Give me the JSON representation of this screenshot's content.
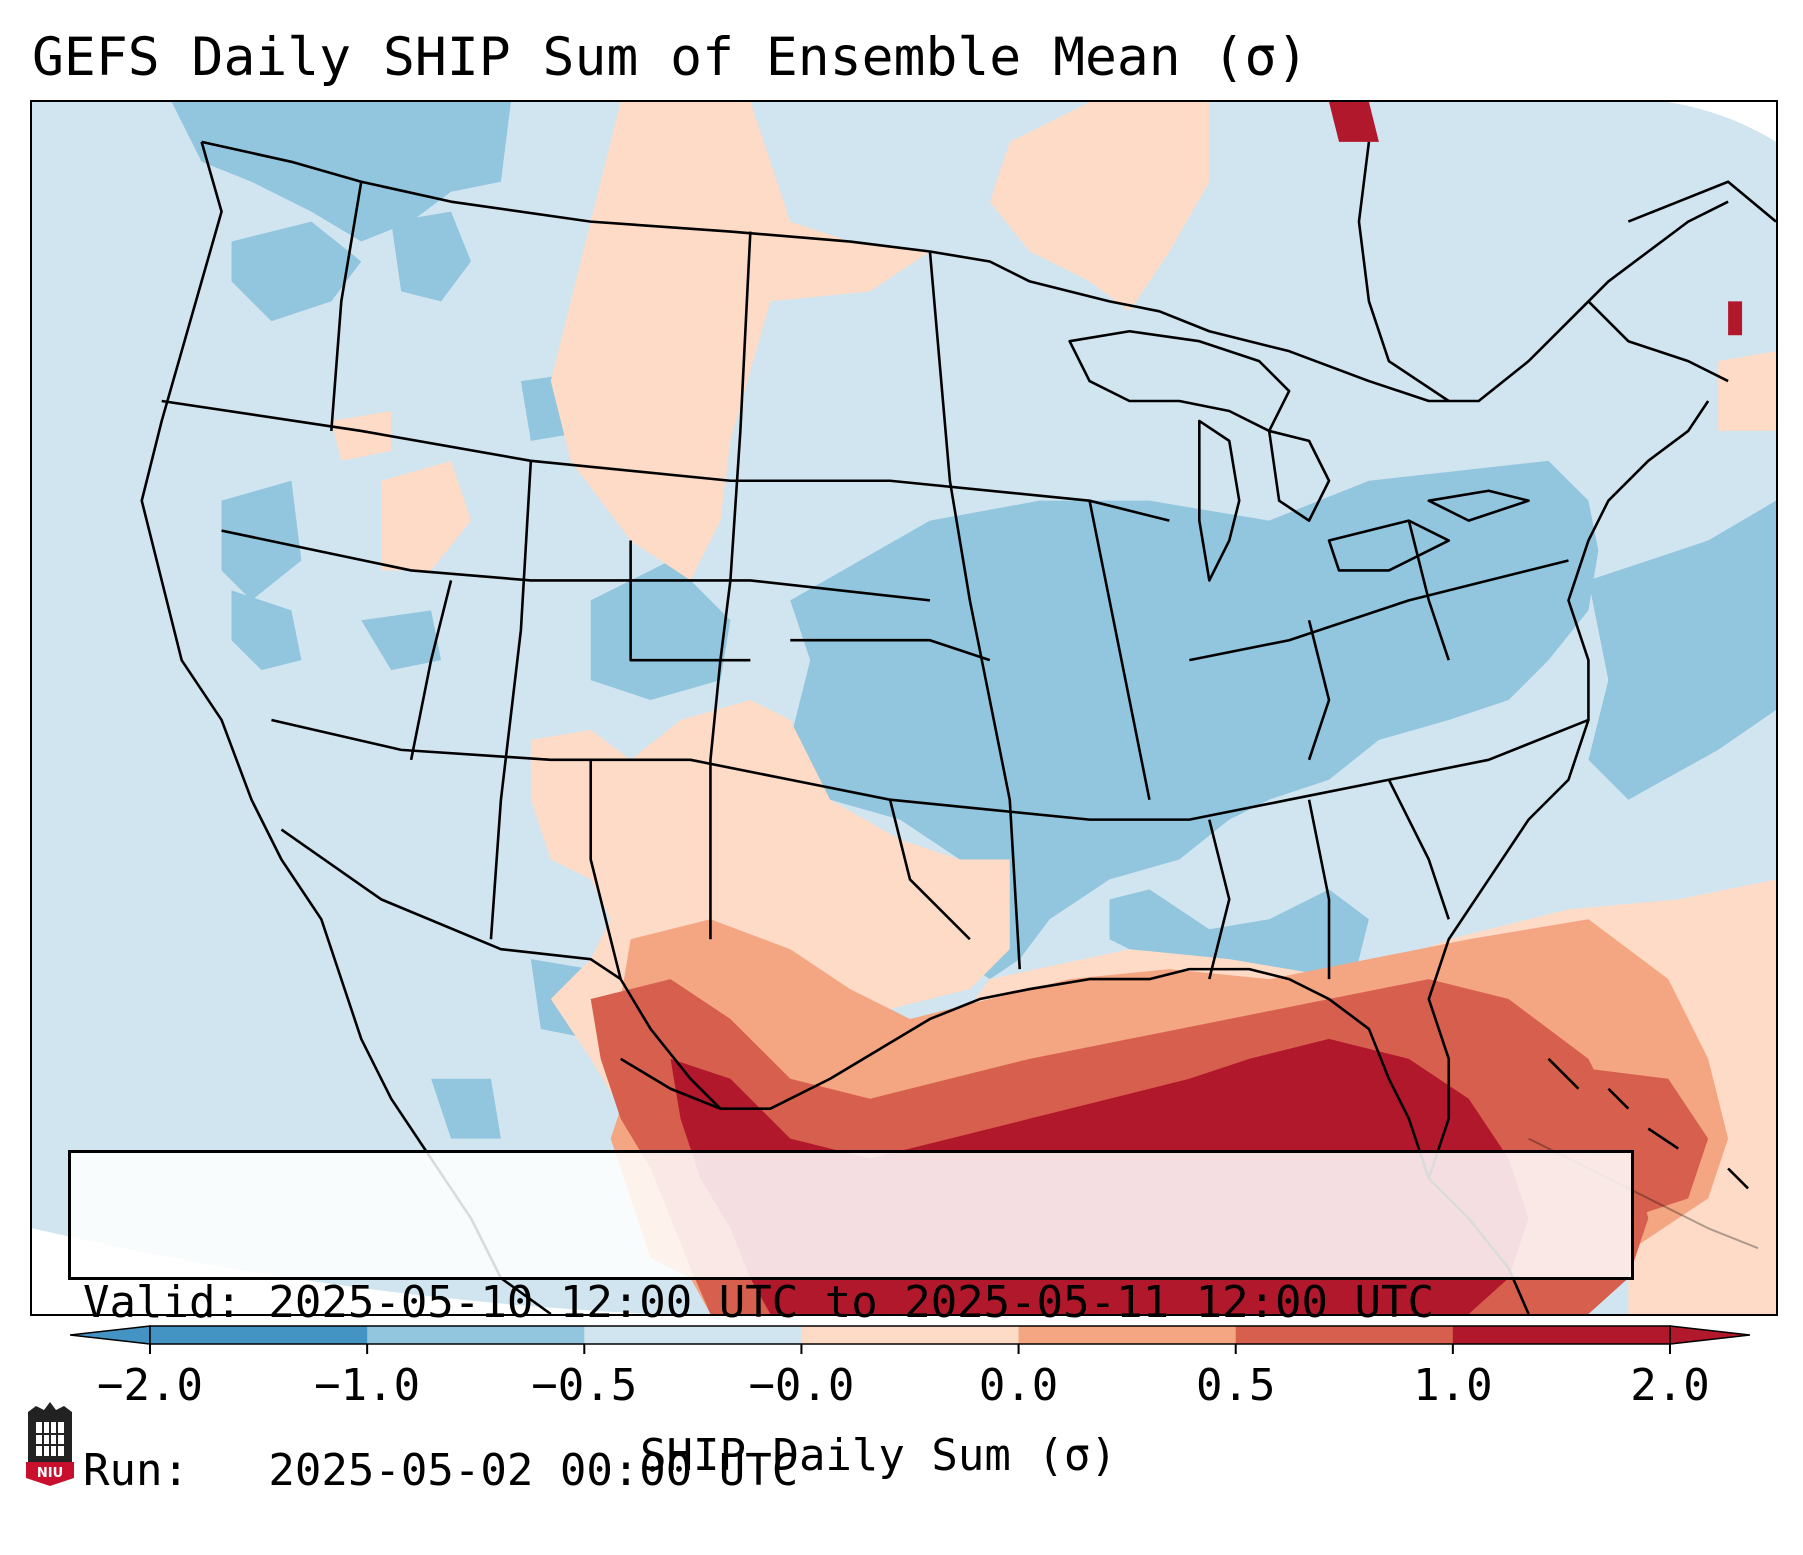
{
  "title": "GEFS Daily SHIP Sum of Ensemble Mean (σ)",
  "info": {
    "valid_line": "Valid: 2025-05-10 12:00 UTC to 2025-05-11 12:00 UTC",
    "run_line": "Run:   2025-05-02 00:00 UTC"
  },
  "colorbar": {
    "label": "SHIP Daily Sum (σ)",
    "ticks": [
      "−2.0",
      "−1.0",
      "−0.5",
      "−0.0",
      "0.0",
      "0.5",
      "1.0",
      "2.0"
    ],
    "colors": [
      "#4393c3",
      "#92c5de",
      "#d1e5f0",
      "#fddbc7",
      "#f4a582",
      "#d6604d",
      "#b2182b"
    ],
    "extend": "both"
  },
  "logo_text": "NIU",
  "map": {
    "projection": "Lambert conformal, CONUS",
    "colors": {
      "ocean": "#d1e5f0",
      "light_blue": "#d1e5f0",
      "mid_blue": "#92c5de",
      "light_red": "#fddbc7",
      "mid_red": "#f4a582",
      "red": "#d6604d",
      "dark_red": "#b2182b",
      "outline": "#000000"
    }
  }
}
